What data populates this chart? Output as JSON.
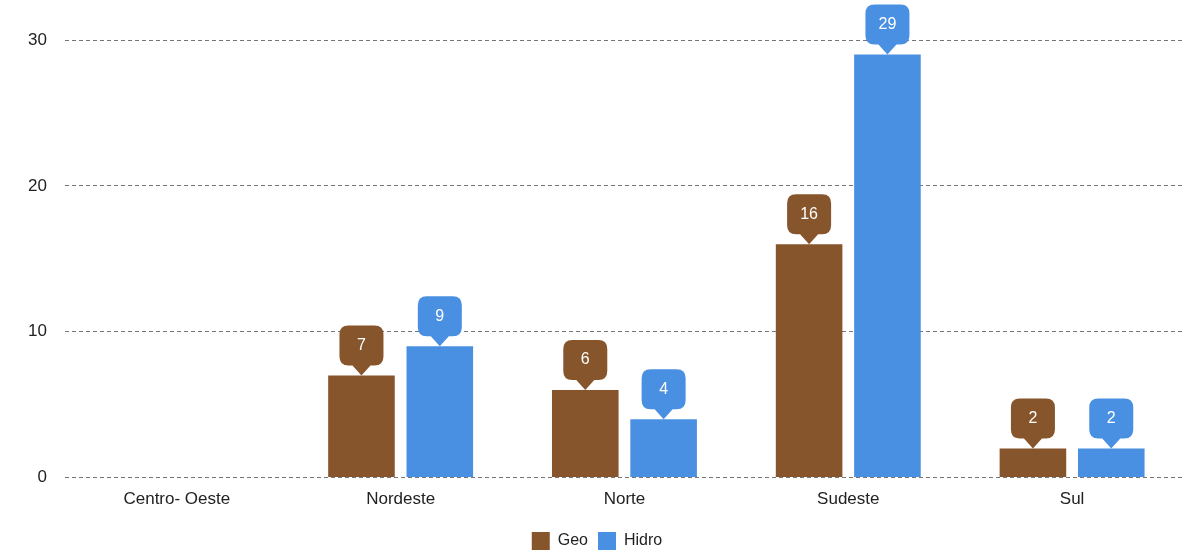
{
  "chart_data": {
    "type": "bar",
    "categories": [
      "Centro- Oeste",
      "Nordeste",
      "Norte",
      "Sudeste",
      "Sul"
    ],
    "series": [
      {
        "name": "Geo",
        "color": "#87552b",
        "values": [
          null,
          7,
          6,
          16,
          2
        ]
      },
      {
        "name": "Hidro",
        "color": "#4a90e2",
        "values": [
          null,
          9,
          4,
          29,
          2
        ]
      }
    ],
    "ylim": [
      0,
      30
    ],
    "yticks": [
      0,
      10,
      20,
      30
    ],
    "grid": "y",
    "legend": "bottom",
    "data_labels": true
  }
}
